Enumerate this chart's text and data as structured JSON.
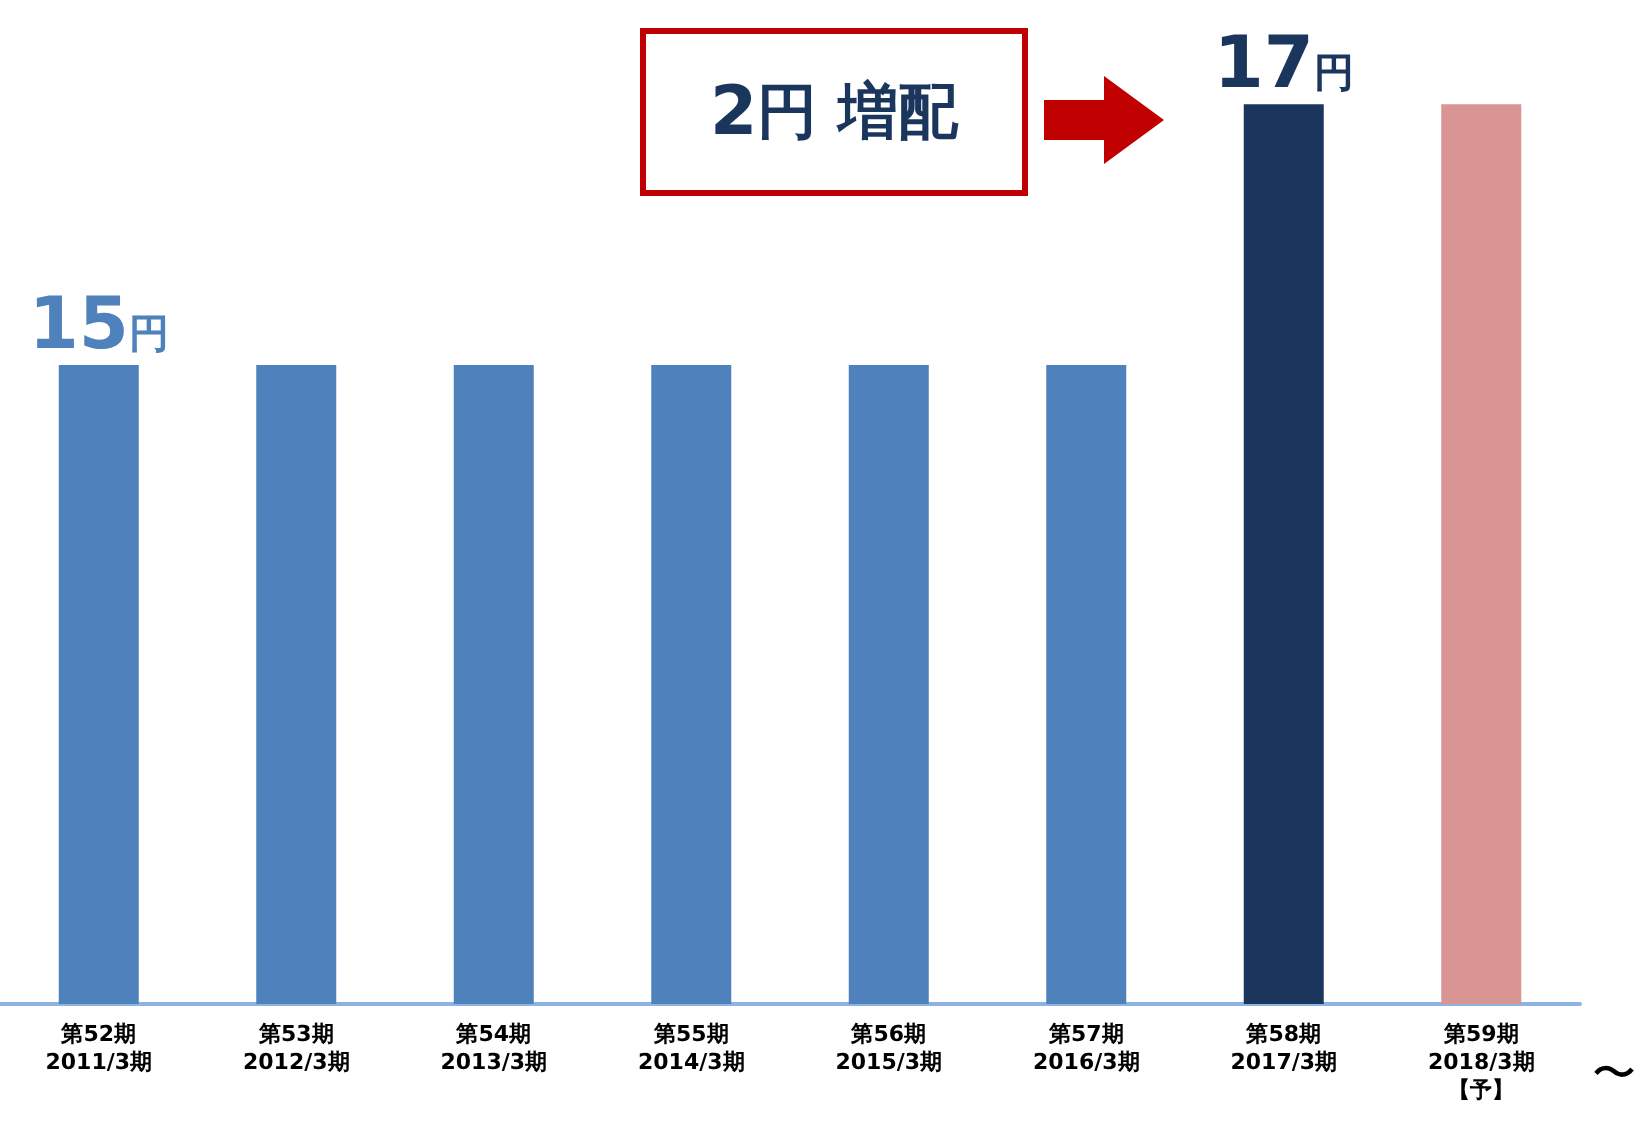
{
  "chart_data": {
    "type": "bar",
    "categories": [
      "第52期\n2011/3期",
      "第53期\n2012/3期",
      "第54期\n2013/3期",
      "第55期\n2014/3期",
      "第56期\n2015/3期",
      "第57期\n2016/3期",
      "第58期\n2017/3期",
      "第59期\n2018/3期【予】"
    ],
    "values": [
      15,
      15,
      15,
      15,
      15,
      15,
      17,
      17
    ],
    "colors": [
      "#4f81bd",
      "#4f81bd",
      "#4f81bd",
      "#4f81bd",
      "#4f81bd",
      "#4f81bd",
      "#1b365d",
      "#d99594"
    ],
    "value_labels": [
      "15円",
      null,
      null,
      null,
      null,
      null,
      "17円",
      null
    ],
    "ylim": [
      10.1,
      17.6
    ],
    "annotations": [
      "2円 増配",
      "〜"
    ]
  }
}
